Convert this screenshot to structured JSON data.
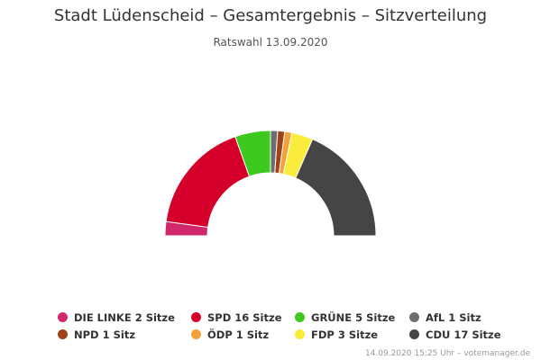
{
  "chart_data": {
    "type": "pie",
    "subtype": "parliament-semicircle",
    "title": "Stadt Lüdenscheid – Gesamtergebnis – Sitzverteilung",
    "subtitle": "Ratswahl 13.09.2020",
    "unit": "Sitze",
    "series": [
      {
        "name": "DIE LINKE",
        "value": 2,
        "value_label": "2 Sitze",
        "color": "#d1286b"
      },
      {
        "name": "SPD",
        "value": 16,
        "value_label": "16 Sitze",
        "color": "#d4002b"
      },
      {
        "name": "GRÜNE",
        "value": 5,
        "value_label": "5 Sitze",
        "color": "#3ec91f"
      },
      {
        "name": "AfL",
        "value": 1,
        "value_label": "1 Sitz",
        "color": "#6e6e6e"
      },
      {
        "name": "NPD",
        "value": 1,
        "value_label": "1 Sitz",
        "color": "#a0431b"
      },
      {
        "name": "ÖDP",
        "value": 1,
        "value_label": "1 Sitz",
        "color": "#f3a13a"
      },
      {
        "name": "FDP",
        "value": 3,
        "value_label": "3 Sitze",
        "color": "#f9ec3c"
      },
      {
        "name": "CDU",
        "value": 17,
        "value_label": "17 Sitze",
        "color": "#454545"
      }
    ],
    "legend_placement": "bottom"
  },
  "credits": "14.09.2020 15:25 Uhr – votemanager.de"
}
